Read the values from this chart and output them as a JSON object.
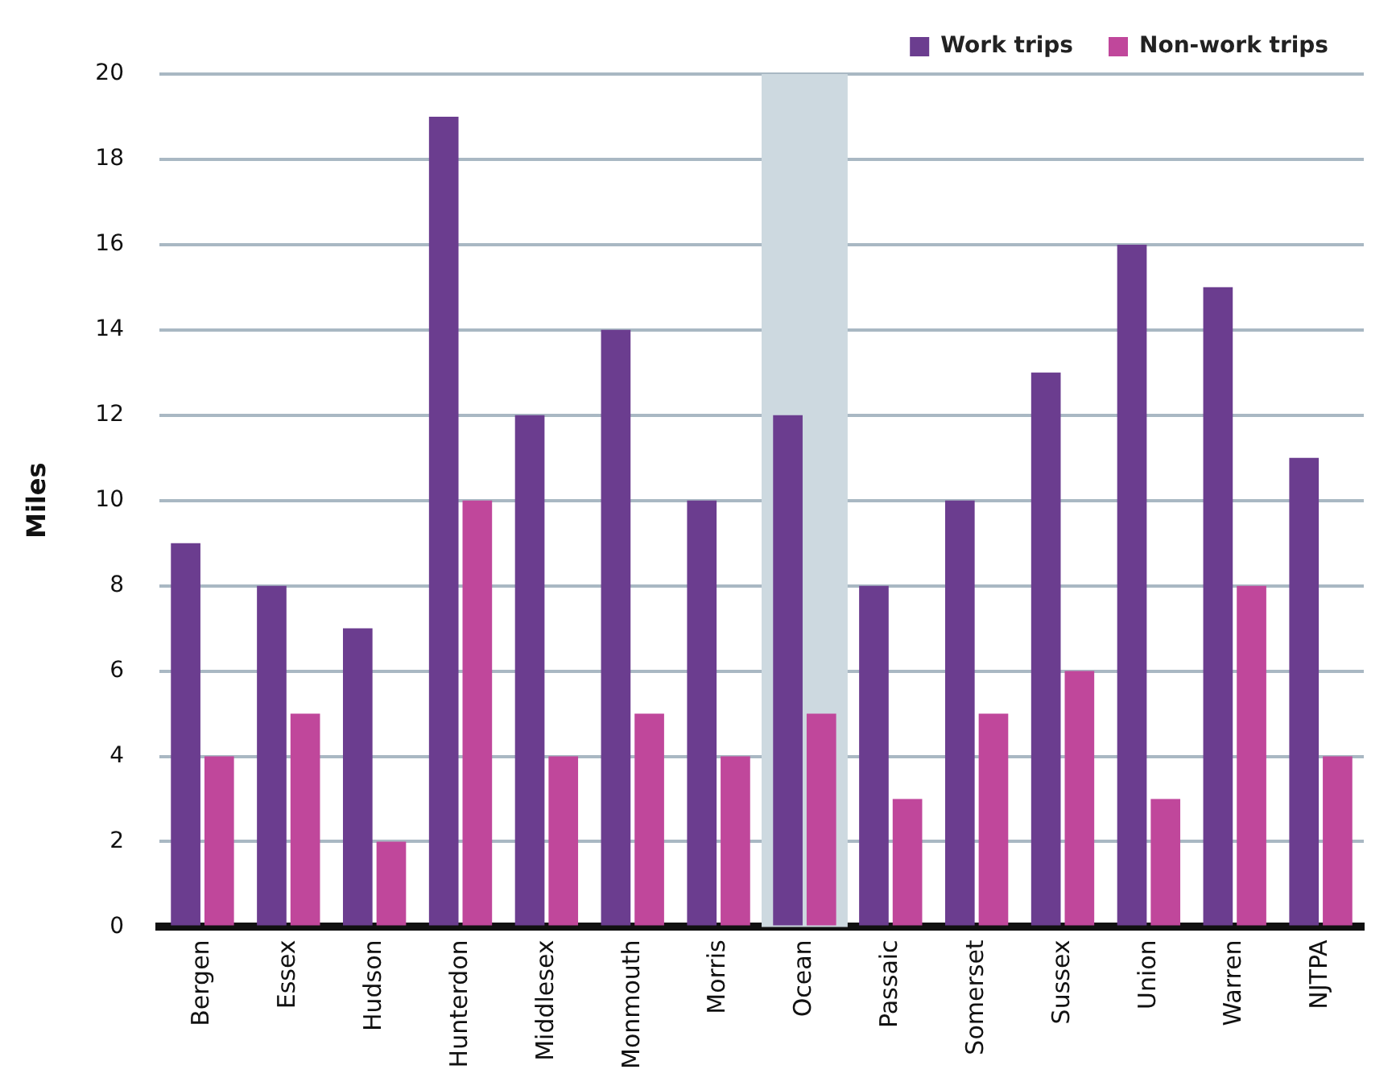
{
  "chart_data": {
    "type": "bar",
    "ylabel": "Miles",
    "categories": [
      "Bergen",
      "Essex",
      "Hudson",
      "Hunterdon",
      "Middlesex",
      "Monmouth",
      "Morris",
      "Ocean",
      "Passaic",
      "Somerset",
      "Sussex",
      "Union",
      "Warren",
      "NJTPA"
    ],
    "series": [
      {
        "name": "Work trips",
        "color": "#6b3d8f",
        "values": [
          9,
          8,
          7,
          19,
          12,
          14,
          10,
          12,
          8,
          10,
          13,
          16,
          15,
          11
        ]
      },
      {
        "name": "Non-work trips",
        "color": "#c0479b",
        "values": [
          4,
          5,
          2,
          10,
          4,
          5,
          4,
          5,
          3,
          5,
          6,
          3,
          8,
          4
        ]
      }
    ],
    "bands": [
      {
        "axis": "x",
        "from": "Ocean",
        "to": "Ocean",
        "color": "#cdd9e0"
      }
    ],
    "ylim": [
      0,
      20
    ],
    "yticks": [
      0,
      2,
      4,
      6,
      8,
      10,
      12,
      14,
      16,
      18,
      20
    ],
    "grid": "y",
    "legend": "top right"
  }
}
